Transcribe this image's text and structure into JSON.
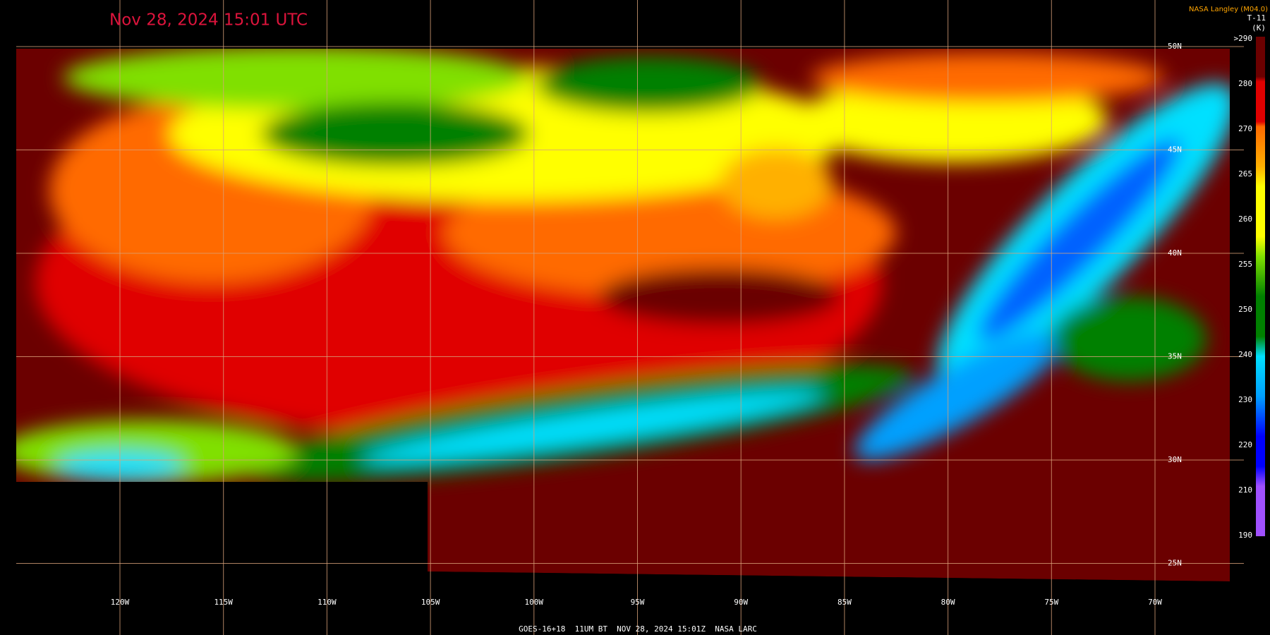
{
  "header": {
    "title": "Nov 28, 2024 15:01 UTC",
    "credit": "NASA Langley (M04.0)",
    "product": "T-11",
    "unit": "(K)"
  },
  "legend": {
    "labels": [
      ">290",
      "280",
      "270",
      "265",
      "260",
      "255",
      "250",
      "240",
      "230",
      "220",
      "210",
      "190"
    ]
  },
  "latitudes": [
    "50N",
    "45N",
    "40N",
    "35N",
    "30N",
    "25N"
  ],
  "longitudes": [
    "120W",
    "115W",
    "110W",
    "105W",
    "100W",
    "95W",
    "90W",
    "85W",
    "80W",
    "75W",
    "70W"
  ],
  "footer": "GOES-16+18  11UM BT  NOV 28, 2024 15:01Z  NASA LARC"
}
